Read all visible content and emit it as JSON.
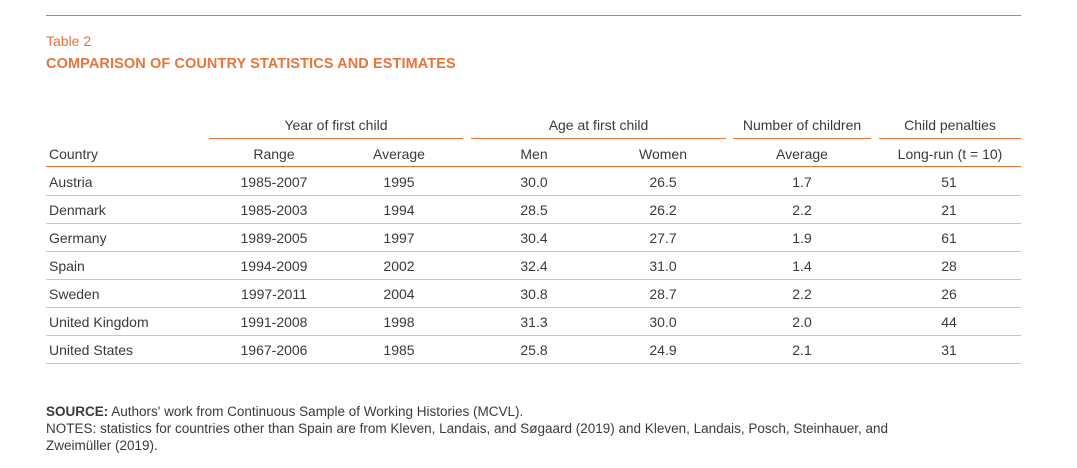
{
  "table": {
    "label": "Table 2",
    "title": "COMPARISON OF COUNTRY STATISTICS AND ESTIMATES",
    "groups": {
      "year_first_child": "Year of first child",
      "age_first_child": "Age at first child",
      "num_children": "Number of children",
      "child_penalties": "Child penalties"
    },
    "subheaders": {
      "country": "Country",
      "range": "Range",
      "average1": "Average",
      "men": "Men",
      "women": "Women",
      "average2": "Average",
      "long_run": "Long-run (t = 10)"
    },
    "rows": [
      {
        "country": "Austria",
        "range": "1985-2007",
        "avg_year": "1995",
        "men": "30.0",
        "women": "26.5",
        "children": "1.7",
        "penalty": "51"
      },
      {
        "country": "Denmark",
        "range": "1985-2003",
        "avg_year": "1994",
        "men": "28.5",
        "women": "26.2",
        "children": "2.2",
        "penalty": "21"
      },
      {
        "country": "Germany",
        "range": "1989-2005",
        "avg_year": "1997",
        "men": "30.4",
        "women": "27.7",
        "children": "1.9",
        "penalty": "61"
      },
      {
        "country": "Spain",
        "range": "1994-2009",
        "avg_year": "2002",
        "men": "32.4",
        "women": "31.0",
        "children": "1.4",
        "penalty": "28"
      },
      {
        "country": "Sweden",
        "range": "1997-2011",
        "avg_year": "2004",
        "men": "30.8",
        "women": "28.7",
        "children": "2.2",
        "penalty": "26"
      },
      {
        "country": "United Kingdom",
        "range": "1991-2008",
        "avg_year": "1998",
        "men": "31.3",
        "women": "30.0",
        "children": "2.0",
        "penalty": "44"
      },
      {
        "country": "United States",
        "range": "1967-2006",
        "avg_year": "1985",
        "men": "25.8",
        "women": "24.9",
        "children": "2.1",
        "penalty": "31"
      }
    ]
  },
  "footer": {
    "source_label": "SOURCE:",
    "source_text": " Authors' work from Continuous Sample of Working Histories (MCVL).",
    "notes_line1": "NOTES: statistics for countries other than Spain are from Kleven, Landais, and Søgaard (2019) and Kleven, Landais, Posch, Steinhauer, and",
    "notes_line2": "Zweimüller (2019)."
  },
  "colors": {
    "accent": "#e8743b",
    "text": "#3a3a3a"
  }
}
